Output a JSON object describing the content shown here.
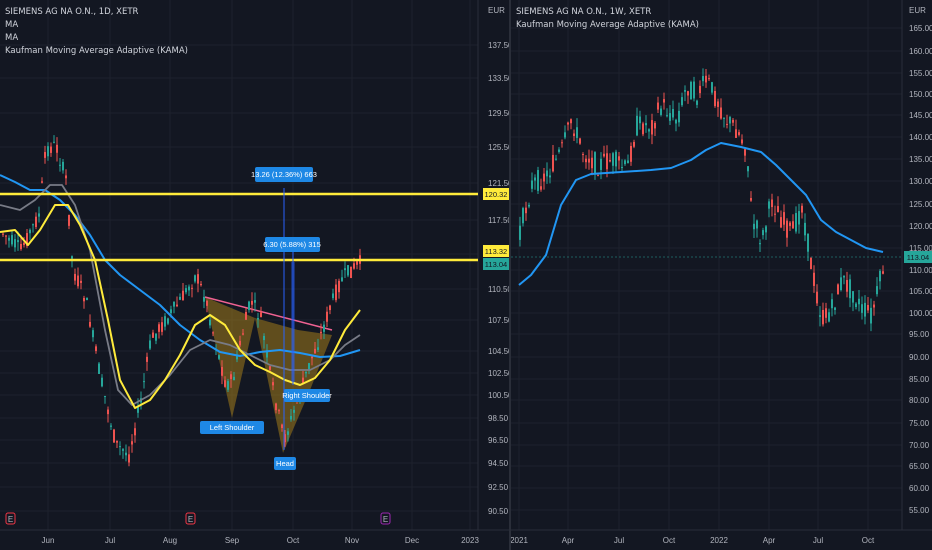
{
  "left_chart": {
    "title": "SIEMENS AG NA O.N., 1D, XETR",
    "indicators": [
      "MA",
      "MA",
      "Kaufman Moving Average Adaptive (KAMA)"
    ],
    "currency": "EUR",
    "price_ticks": [
      "137.50",
      "133.50",
      "129.50",
      "125.50",
      "121.50",
      "117.50",
      "113.50",
      "110.50",
      "107.50",
      "104.50",
      "102.50",
      "100.50",
      "98.50",
      "96.50",
      "94.50",
      "92.50",
      "90.50"
    ],
    "time_ticks": [
      "Jun",
      "Jul",
      "Aug",
      "Sep",
      "Oct",
      "Nov",
      "Dec",
      "2023"
    ],
    "price_badges": [
      {
        "text": "120.32",
        "color": "#ffeb3b"
      },
      {
        "text": "113.32",
        "color": "#ffeb3b"
      },
      {
        "text": "113.04",
        "color": "#26a69a"
      }
    ],
    "measure_labels": [
      "13.26 (12.36%) 663",
      "6.30 (5.88%) 315"
    ],
    "pattern_labels": [
      "Left Shoulder",
      "Head",
      "Right Shoulder"
    ],
    "event_markers": [
      "E",
      "E",
      "E"
    ]
  },
  "right_chart": {
    "title": "SIEMENS AG NA O.N., 1W, XETR",
    "indicators": [
      "Kaufman Moving Average Adaptive (KAMA)"
    ],
    "currency": "EUR",
    "price_ticks": [
      "165.00",
      "160.00",
      "155.00",
      "150.00",
      "145.00",
      "140.00",
      "135.00",
      "130.00",
      "125.00",
      "120.00",
      "115.00",
      "110.00",
      "105.00",
      "100.00",
      "95.00",
      "90.00",
      "85.00",
      "80.00",
      "75.00",
      "70.00",
      "65.00",
      "60.00",
      "55.00"
    ],
    "time_ticks": [
      "2021",
      "Apr",
      "Jul",
      "Oct",
      "2022",
      "Apr",
      "Jul",
      "Oct"
    ],
    "price_badge": {
      "text": "113.04",
      "color": "#26a69a"
    }
  },
  "colors": {
    "background": "#131722",
    "up": "#26a69a",
    "down": "#ef5350",
    "ma_yellow": "#ffeb3b",
    "ma_gray": "#787b86",
    "kama_blue": "#2196f3",
    "pattern_fill": "#a07a1a",
    "measure_blue": "#2962ff",
    "label_blue": "#1e88e5"
  }
}
